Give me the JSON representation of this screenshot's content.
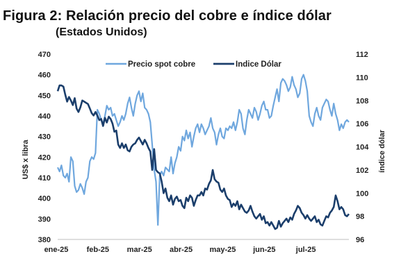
{
  "header": {
    "title": "Figura 2: Relación precio del cobre e índice dólar",
    "subtitle": "(Estados Unidos)"
  },
  "chart_data": {
    "type": "line",
    "categories": [
      "ene-25",
      "feb-25",
      "mar-25",
      "abr-25",
      "may-25",
      "jun-25",
      "jul-25"
    ],
    "ylabel": "US$ x libra",
    "y2label": "índice dólar",
    "ylim": [
      380,
      470
    ],
    "y2lim": [
      96,
      112
    ],
    "yticks": [
      380,
      390,
      400,
      410,
      420,
      430,
      440,
      450,
      460,
      470
    ],
    "y2ticks": [
      96,
      98,
      100,
      102,
      104,
      106,
      108,
      110,
      112
    ],
    "colors": {
      "copper": "#6fa7de",
      "dollar": "#1b3e6b"
    },
    "series": [
      {
        "name": "Precio spot cobre",
        "axis": "left",
        "x": [
          0,
          1,
          2,
          3,
          4,
          5,
          6,
          7,
          8,
          9,
          10,
          11,
          12,
          13,
          14,
          15,
          16,
          17,
          18,
          19,
          20,
          21,
          22,
          23,
          24,
          25,
          26,
          27,
          28,
          29,
          30,
          31,
          32,
          33,
          34,
          35,
          36,
          37,
          38,
          39,
          40,
          41,
          42,
          43,
          44,
          45,
          46,
          47,
          48,
          49,
          50,
          51,
          52,
          53,
          54,
          55,
          56,
          57,
          58,
          59,
          60,
          61,
          62,
          63,
          64,
          65,
          66,
          67,
          68,
          69,
          70,
          71,
          72,
          73,
          74,
          75,
          76,
          77,
          78,
          79,
          80,
          81,
          82,
          83,
          84,
          85,
          86,
          87,
          88,
          89,
          90,
          91,
          92,
          93,
          94,
          95,
          96,
          97,
          98,
          99,
          100,
          101,
          102,
          103,
          104,
          105,
          106,
          107,
          108,
          109,
          110,
          111,
          112,
          113,
          114,
          115,
          116,
          117,
          118,
          119,
          120,
          121,
          122,
          123,
          124,
          125,
          126,
          127,
          128,
          129,
          130,
          131,
          132,
          133,
          134,
          135,
          136,
          137,
          138,
          139,
          140,
          141,
          142,
          143,
          144,
          145,
          146,
          147,
          148,
          149,
          150,
          151,
          152,
          153,
          154
        ],
        "values": [
          415,
          413,
          416,
          411,
          410,
          412,
          408,
          420,
          418,
          406,
          403,
          404,
          407,
          405,
          402,
          408,
          410,
          418,
          420,
          419,
          422,
          443,
          441,
          438,
          436,
          440,
          445,
          443,
          444,
          440,
          441,
          438,
          435,
          437,
          440,
          438,
          441,
          446,
          449,
          444,
          440,
          446,
          450,
          452,
          447,
          451,
          444,
          443,
          441,
          437,
          426,
          414,
          408,
          387,
          411,
          413,
          411,
          415,
          414,
          413,
          420,
          412,
          417,
          420,
          425,
          423,
          430,
          428,
          433,
          429,
          432,
          425,
          430,
          434,
          436,
          432,
          436,
          434,
          431,
          433,
          435,
          439,
          434,
          432,
          426,
          431,
          434,
          430,
          429,
          434,
          433,
          435,
          434,
          437,
          433,
          437,
          443,
          441,
          434,
          431,
          438,
          443,
          441,
          439,
          444,
          442,
          438,
          441,
          445,
          447,
          443,
          443,
          439,
          440,
          445,
          449,
          453,
          447,
          456,
          458,
          457,
          455,
          452,
          454,
          459,
          455,
          453,
          449,
          451,
          458,
          460,
          457,
          452,
          440,
          437,
          435,
          441,
          444,
          440,
          438,
          444,
          446,
          448,
          447,
          443,
          440,
          446,
          441,
          438,
          433,
          436,
          434,
          437,
          438,
          437
        ]
      },
      {
        "name": "Indice Dólar",
        "axis": "right",
        "x": [
          0,
          1,
          2,
          3,
          4,
          5,
          6,
          7,
          8,
          9,
          10,
          11,
          12,
          13,
          14,
          15,
          16,
          17,
          18,
          19,
          20,
          21,
          22,
          23,
          24,
          25,
          26,
          27,
          28,
          29,
          30,
          31,
          32,
          33,
          34,
          35,
          36,
          37,
          38,
          39,
          40,
          41,
          42,
          43,
          44,
          45,
          46,
          47,
          48,
          49,
          50,
          51,
          52,
          53,
          54,
          55,
          56,
          57,
          58,
          59,
          60,
          61,
          62,
          63,
          64,
          65,
          66,
          67,
          68,
          69,
          70,
          71,
          72,
          73,
          74,
          75,
          76,
          77,
          78,
          79,
          80,
          81,
          82,
          83,
          84,
          85,
          86,
          87,
          88,
          89,
          90,
          91,
          92,
          93,
          94,
          95,
          96,
          97,
          98,
          99,
          100,
          101,
          102,
          103,
          104,
          105,
          106,
          107,
          108,
          109,
          110,
          111,
          112,
          113,
          114,
          115,
          116,
          117,
          118,
          119,
          120,
          121,
          122,
          123,
          124,
          125,
          126,
          127,
          128,
          129,
          130,
          131,
          132,
          133,
          134,
          135,
          136,
          137,
          138,
          139,
          140,
          141,
          142,
          143,
          144,
          145,
          146,
          147,
          148,
          149,
          150,
          151,
          152,
          153,
          154
        ],
        "values": [
          108.8,
          109.3,
          109.3,
          109.2,
          108.5,
          107.9,
          108.3,
          108.0,
          107.6,
          108.2,
          107.3,
          107.0,
          107.4,
          108.0,
          107.9,
          107.8,
          107.7,
          107.3,
          106.9,
          106.7,
          107.0,
          106.7,
          106.3,
          106.4,
          105.8,
          106.5,
          106.1,
          106.6,
          106.4,
          106.0,
          105.3,
          105.4,
          104.2,
          103.9,
          104.3,
          103.9,
          104.2,
          103.7,
          103.6,
          104.0,
          104.2,
          104.3,
          104.6,
          104.8,
          104.5,
          104.2,
          104.6,
          104.3,
          103.9,
          103.6,
          102.0,
          103.8,
          102.0,
          101.8,
          101.7,
          101.0,
          100.0,
          100.4,
          99.6,
          99.3,
          99.8,
          99.0,
          99.5,
          99.7,
          99.3,
          99.4,
          98.9,
          98.7,
          99.6,
          99.3,
          99.8,
          99.6,
          98.9,
          99.4,
          99.8,
          99.8,
          100.1,
          99.8,
          100.4,
          100.3,
          100.8,
          101.1,
          102.0,
          101.2,
          101.0,
          100.9,
          100.3,
          100.1,
          100.4,
          99.8,
          99.5,
          99.4,
          98.8,
          99.1,
          98.9,
          99.3,
          98.6,
          99.0,
          98.7,
          98.4,
          98.3,
          98.5,
          98.9,
          98.4,
          98.0,
          97.8,
          98.0,
          98.2,
          97.7,
          98.0,
          97.4,
          97.5,
          97.2,
          97.5,
          97.2,
          96.9,
          97.0,
          97.6,
          97.1,
          97.4,
          97.6,
          97.8,
          97.5,
          97.9,
          97.7,
          98.2,
          98.5,
          98.9,
          98.7,
          98.3,
          98.1,
          97.8,
          98.1,
          97.8,
          97.6,
          97.8,
          98.0,
          97.5,
          97.7,
          97.3,
          97.2,
          97.6,
          98.0,
          97.9,
          98.3,
          98.5,
          98.8,
          99.8,
          99.3,
          98.6,
          98.8,
          98.6,
          98.1,
          98.0,
          98.2
        ]
      }
    ]
  }
}
